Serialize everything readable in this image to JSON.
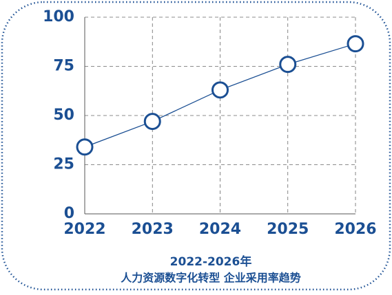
{
  "chart_data": {
    "type": "line",
    "title": [
      "2022-2026年",
      "人力资源数字化转型 企业采用率趋势"
    ],
    "categories": [
      "2022",
      "2023",
      "2024",
      "2025",
      "2026"
    ],
    "values": [
      34,
      47,
      63,
      76,
      86.5
    ],
    "color": "#1b4f93",
    "ylim": [
      0,
      100
    ],
    "yticks": [
      0,
      25,
      50,
      75,
      100
    ],
    "grid": true
  }
}
